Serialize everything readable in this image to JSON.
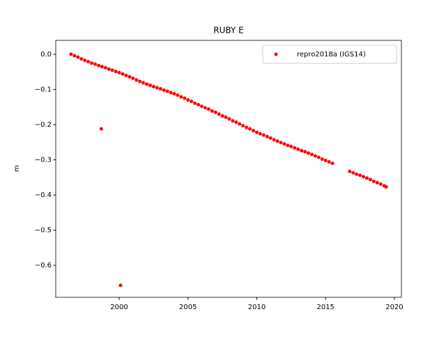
{
  "chart_data": {
    "type": "scatter",
    "title": "RUBY E",
    "ylabel": "m",
    "series": [
      {
        "name": "repro2018a (IGS14)",
        "color": "#ff0000",
        "x": [
          1996.5,
          1996.75,
          1997,
          1997.25,
          1997.5,
          1997.75,
          1998,
          1998.25,
          1998.5,
          1998.7,
          1998.75,
          1999,
          1999.25,
          1999.5,
          1999.75,
          2000,
          2000.1,
          2000.25,
          2000.5,
          2000.75,
          2001,
          2001.25,
          2001.5,
          2001.75,
          2002,
          2002.25,
          2002.5,
          2002.75,
          2003,
          2003.25,
          2003.5,
          2003.75,
          2004,
          2004.25,
          2004.5,
          2004.75,
          2005,
          2005.25,
          2005.5,
          2005.75,
          2006,
          2006.25,
          2006.5,
          2006.75,
          2007,
          2007.25,
          2007.5,
          2007.75,
          2008,
          2008.25,
          2008.5,
          2008.75,
          2009,
          2009.25,
          2009.5,
          2009.75,
          2010,
          2010.25,
          2010.5,
          2010.75,
          2011,
          2011.25,
          2011.5,
          2011.75,
          2012,
          2012.25,
          2012.5,
          2012.75,
          2013,
          2013.25,
          2013.5,
          2013.75,
          2014,
          2014.25,
          2014.5,
          2014.75,
          2015,
          2015.25,
          2015.5,
          2016.75,
          2017,
          2017.25,
          2017.5,
          2017.75,
          2018,
          2018.25,
          2018.5,
          2018.75,
          2019,
          2019.25,
          2019.4
        ],
        "values": [
          0,
          -0.004,
          -0.008,
          -0.013,
          -0.017,
          -0.021,
          -0.025,
          -0.028,
          -0.032,
          -0.212,
          -0.035,
          -0.038,
          -0.042,
          -0.045,
          -0.049,
          -0.052,
          -0.657,
          -0.056,
          -0.06,
          -0.064,
          -0.068,
          -0.073,
          -0.077,
          -0.081,
          -0.085,
          -0.088,
          -0.092,
          -0.095,
          -0.098,
          -0.102,
          -0.105,
          -0.109,
          -0.112,
          -0.116,
          -0.121,
          -0.125,
          -0.13,
          -0.134,
          -0.139,
          -0.143,
          -0.148,
          -0.152,
          -0.156,
          -0.161,
          -0.165,
          -0.17,
          -0.175,
          -0.179,
          -0.184,
          -0.189,
          -0.193,
          -0.198,
          -0.203,
          -0.208,
          -0.212,
          -0.217,
          -0.222,
          -0.226,
          -0.23,
          -0.234,
          -0.238,
          -0.243,
          -0.247,
          -0.251,
          -0.255,
          -0.259,
          -0.262,
          -0.266,
          -0.27,
          -0.274,
          -0.277,
          -0.281,
          -0.285,
          -0.289,
          -0.293,
          -0.298,
          -0.302,
          -0.306,
          -0.31,
          -0.333,
          -0.337,
          -0.341,
          -0.344,
          -0.348,
          -0.352,
          -0.356,
          -0.361,
          -0.365,
          -0.369,
          -0.374,
          -0.377
        ]
      }
    ],
    "xlim": [
      1995.39,
      2020.51
    ],
    "xticks": [
      2000,
      2005,
      2010,
      2015,
      2020
    ],
    "ylim": [
      -0.691,
      0.0396
    ],
    "yticks": [
      {
        "value": 0,
        "label": "0.0"
      },
      {
        "value": -0.1,
        "label": "−0.1"
      },
      {
        "value": -0.2,
        "label": "−0.2"
      },
      {
        "value": -0.3,
        "label": "−0.3"
      },
      {
        "value": -0.4,
        "label": "−0.4"
      },
      {
        "value": -0.5,
        "label": "−0.5"
      },
      {
        "value": -0.6,
        "label": "−0.6"
      }
    ],
    "legend": "upper right"
  }
}
